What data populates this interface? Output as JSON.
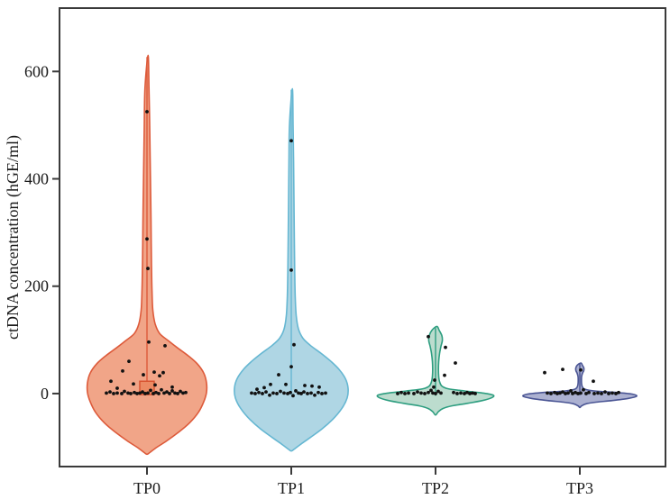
{
  "figure": {
    "background": "#ffffff",
    "frame_color": "#3a3a3a",
    "text_color": "#1a1a1a"
  },
  "chart_data": {
    "type": "violin",
    "title": "",
    "xlabel": "",
    "ylabel": "ctDNA concentration (hGE/ml)",
    "categories": [
      "TP0",
      "TP1",
      "TP2",
      "TP3"
    ],
    "yticks": [
      0,
      200,
      400,
      600
    ],
    "ylim": [
      -136,
      718
    ],
    "grid": false,
    "legend": "none",
    "point_color": "#111111",
    "groups": [
      {
        "name": "TP0",
        "fill": "#F1A588",
        "stroke": "#DD5A3A",
        "max_value": 630,
        "min_tail": -113,
        "profile": [
          [
            630,
            1.2
          ],
          [
            570,
            2.2
          ],
          [
            500,
            3.0
          ],
          [
            430,
            3.6
          ],
          [
            360,
            4.2
          ],
          [
            300,
            4.6
          ],
          [
            240,
            5.0
          ],
          [
            190,
            5.6
          ],
          [
            155,
            6.5
          ],
          [
            130,
            9
          ],
          [
            112,
            14
          ],
          [
            98,
            24
          ],
          [
            85,
            34
          ],
          [
            70,
            46
          ],
          [
            55,
            56
          ],
          [
            38,
            63
          ],
          [
            20,
            66
          ],
          [
            2,
            66
          ],
          [
            -15,
            63
          ],
          [
            -35,
            57
          ],
          [
            -55,
            47
          ],
          [
            -72,
            35
          ],
          [
            -88,
            22
          ],
          [
            -100,
            11
          ],
          [
            -110,
            3
          ],
          [
            -113,
            0
          ]
        ],
        "center_line": [
          -2,
          627
        ],
        "box": {
          "low": -2,
          "high": 23,
          "halfwidth": 8,
          "fill": "#EC8A63",
          "stroke": "#D7502F"
        },
        "points": [
          [
            0,
            525
          ],
          [
            0,
            288
          ],
          [
            1,
            233
          ],
          [
            2,
            96
          ],
          [
            20,
            89
          ],
          [
            -20,
            60
          ],
          [
            -27,
            42
          ],
          [
            8,
            40
          ],
          [
            18,
            39
          ],
          [
            -4,
            35
          ],
          [
            14,
            33
          ],
          [
            -40,
            23
          ],
          [
            -15,
            18
          ],
          [
            9,
            16
          ],
          [
            28,
            12
          ],
          [
            -33,
            10
          ],
          [
            -45,
            1
          ],
          [
            -41,
            3
          ],
          [
            -37,
            0
          ],
          [
            -33,
            1
          ],
          [
            -28,
            0
          ],
          [
            -25,
            4
          ],
          [
            -21,
            1
          ],
          [
            -18,
            0
          ],
          [
            -14,
            2
          ],
          [
            -11,
            0
          ],
          [
            -8,
            1
          ],
          [
            -5,
            3
          ],
          [
            -2,
            0
          ],
          [
            1,
            1
          ],
          [
            4,
            6
          ],
          [
            7,
            0
          ],
          [
            10,
            2
          ],
          [
            13,
            0
          ],
          [
            16,
            7
          ],
          [
            19,
            1
          ],
          [
            22,
            3
          ],
          [
            25,
            0
          ],
          [
            28,
            5
          ],
          [
            31,
            1
          ],
          [
            34,
            0
          ],
          [
            37,
            4
          ],
          [
            40,
            1
          ],
          [
            43,
            2
          ]
        ]
      },
      {
        "name": "TP1",
        "fill": "#AFD6E4",
        "stroke": "#66B7D2",
        "max_value": 568,
        "min_tail": -107,
        "profile": [
          [
            568,
            1.2
          ],
          [
            500,
            2.0
          ],
          [
            430,
            2.6
          ],
          [
            360,
            3.0
          ],
          [
            290,
            3.4
          ],
          [
            230,
            3.8
          ],
          [
            180,
            4.4
          ],
          [
            145,
            5.5
          ],
          [
            120,
            8
          ],
          [
            103,
            13
          ],
          [
            90,
            21
          ],
          [
            75,
            33
          ],
          [
            60,
            44
          ],
          [
            45,
            53
          ],
          [
            28,
            60
          ],
          [
            10,
            63
          ],
          [
            -8,
            62
          ],
          [
            -28,
            56
          ],
          [
            -48,
            46
          ],
          [
            -66,
            34
          ],
          [
            -82,
            21
          ],
          [
            -95,
            10
          ],
          [
            -104,
            3
          ],
          [
            -107,
            0
          ]
        ],
        "center_line": [
          -2,
          566
        ],
        "box": null,
        "points": [
          [
            0,
            471
          ],
          [
            0,
            230
          ],
          [
            3,
            91
          ],
          [
            0,
            50
          ],
          [
            -14,
            35
          ],
          [
            -23,
            17
          ],
          [
            -6,
            17
          ],
          [
            15,
            15
          ],
          [
            23,
            14
          ],
          [
            31,
            12
          ],
          [
            -30,
            11
          ],
          [
            -38,
            8
          ],
          [
            -44,
            1
          ],
          [
            -40,
            0
          ],
          [
            -36,
            2
          ],
          [
            -32,
            0
          ],
          [
            -28,
            3
          ],
          [
            -24,
            -3
          ],
          [
            -20,
            1
          ],
          [
            -16,
            0
          ],
          [
            -12,
            4
          ],
          [
            -8,
            1
          ],
          [
            -4,
            0
          ],
          [
            -1,
            2
          ],
          [
            2,
            -4
          ],
          [
            5,
            5
          ],
          [
            8,
            1
          ],
          [
            11,
            0
          ],
          [
            14,
            3
          ],
          [
            18,
            0
          ],
          [
            22,
            1
          ],
          [
            26,
            -3
          ],
          [
            30,
            2
          ],
          [
            34,
            0
          ],
          [
            38,
            1
          ]
        ]
      },
      {
        "name": "TP2",
        "fill": "#BCDCCE",
        "stroke": "#2E9E80",
        "max_value": 125,
        "min_tail": -40,
        "profile": [
          [
            125,
            1.5
          ],
          [
            118,
            4
          ],
          [
            108,
            7
          ],
          [
            98,
            7.5
          ],
          [
            88,
            6
          ],
          [
            75,
            4.5
          ],
          [
            60,
            3.5
          ],
          [
            45,
            3.2
          ],
          [
            32,
            3.5
          ],
          [
            22,
            4.5
          ],
          [
            14,
            7
          ],
          [
            9,
            14
          ],
          [
            5,
            32
          ],
          [
            1,
            52
          ],
          [
            -3,
            64
          ],
          [
            -8,
            62
          ],
          [
            -13,
            52
          ],
          [
            -18,
            36
          ],
          [
            -23,
            18
          ],
          [
            -28,
            8
          ],
          [
            -34,
            3
          ],
          [
            -40,
            0
          ]
        ],
        "center_line": [
          -4,
          122
        ],
        "box": null,
        "points": [
          [
            -8,
            106
          ],
          [
            11,
            86
          ],
          [
            22,
            57
          ],
          [
            10,
            34
          ],
          [
            -1,
            25
          ],
          [
            -2,
            12
          ],
          [
            -42,
            0
          ],
          [
            -38,
            2
          ],
          [
            -34,
            0
          ],
          [
            -30,
            1
          ],
          [
            -24,
            0
          ],
          [
            -20,
            3
          ],
          [
            -16,
            1
          ],
          [
            -12,
            0
          ],
          [
            -8,
            2
          ],
          [
            -5,
            6
          ],
          [
            -3,
            1
          ],
          [
            0,
            0
          ],
          [
            3,
            4
          ],
          [
            6,
            1
          ],
          [
            20,
            2
          ],
          [
            24,
            0
          ],
          [
            28,
            1
          ],
          [
            32,
            0
          ],
          [
            35,
            2
          ],
          [
            38,
            0
          ],
          [
            41,
            1
          ],
          [
            44,
            0
          ]
        ]
      },
      {
        "name": "TP3",
        "fill": "#ACB1D1",
        "stroke": "#4A5594",
        "max_value": 57,
        "min_tail": -26,
        "profile": [
          [
            57,
            1.2
          ],
          [
            53,
            2.8
          ],
          [
            48,
            4.4
          ],
          [
            43,
            4.4
          ],
          [
            38,
            3.0
          ],
          [
            32,
            2.0
          ],
          [
            25,
            1.8
          ],
          [
            18,
            2.0
          ],
          [
            12,
            3.0
          ],
          [
            8,
            6
          ],
          [
            5,
            16
          ],
          [
            2,
            40
          ],
          [
            -1,
            58
          ],
          [
            -5,
            63
          ],
          [
            -9,
            54
          ],
          [
            -13,
            36
          ],
          [
            -16,
            18
          ],
          [
            -19,
            7
          ],
          [
            -23,
            2
          ],
          [
            -26,
            0
          ]
        ],
        "center_line": [
          -3,
          55
        ],
        "box": null,
        "points": [
          [
            -39,
            39
          ],
          [
            -19,
            45
          ],
          [
            1,
            44
          ],
          [
            15,
            23
          ],
          [
            -36,
            1
          ],
          [
            -32,
            0
          ],
          [
            -28,
            2
          ],
          [
            -25,
            0
          ],
          [
            -22,
            1
          ],
          [
            -19,
            3
          ],
          [
            -16,
            0
          ],
          [
            -13,
            1
          ],
          [
            -10,
            5
          ],
          [
            -8,
            0
          ],
          [
            -5,
            2
          ],
          [
            -2,
            0
          ],
          [
            1,
            1
          ],
          [
            4,
            7
          ],
          [
            7,
            0
          ],
          [
            10,
            2
          ],
          [
            16,
            0
          ],
          [
            20,
            1
          ],
          [
            24,
            0
          ],
          [
            28,
            3
          ],
          [
            32,
            0
          ],
          [
            36,
            1
          ],
          [
            40,
            0
          ],
          [
            43,
            2
          ]
        ]
      }
    ]
  }
}
